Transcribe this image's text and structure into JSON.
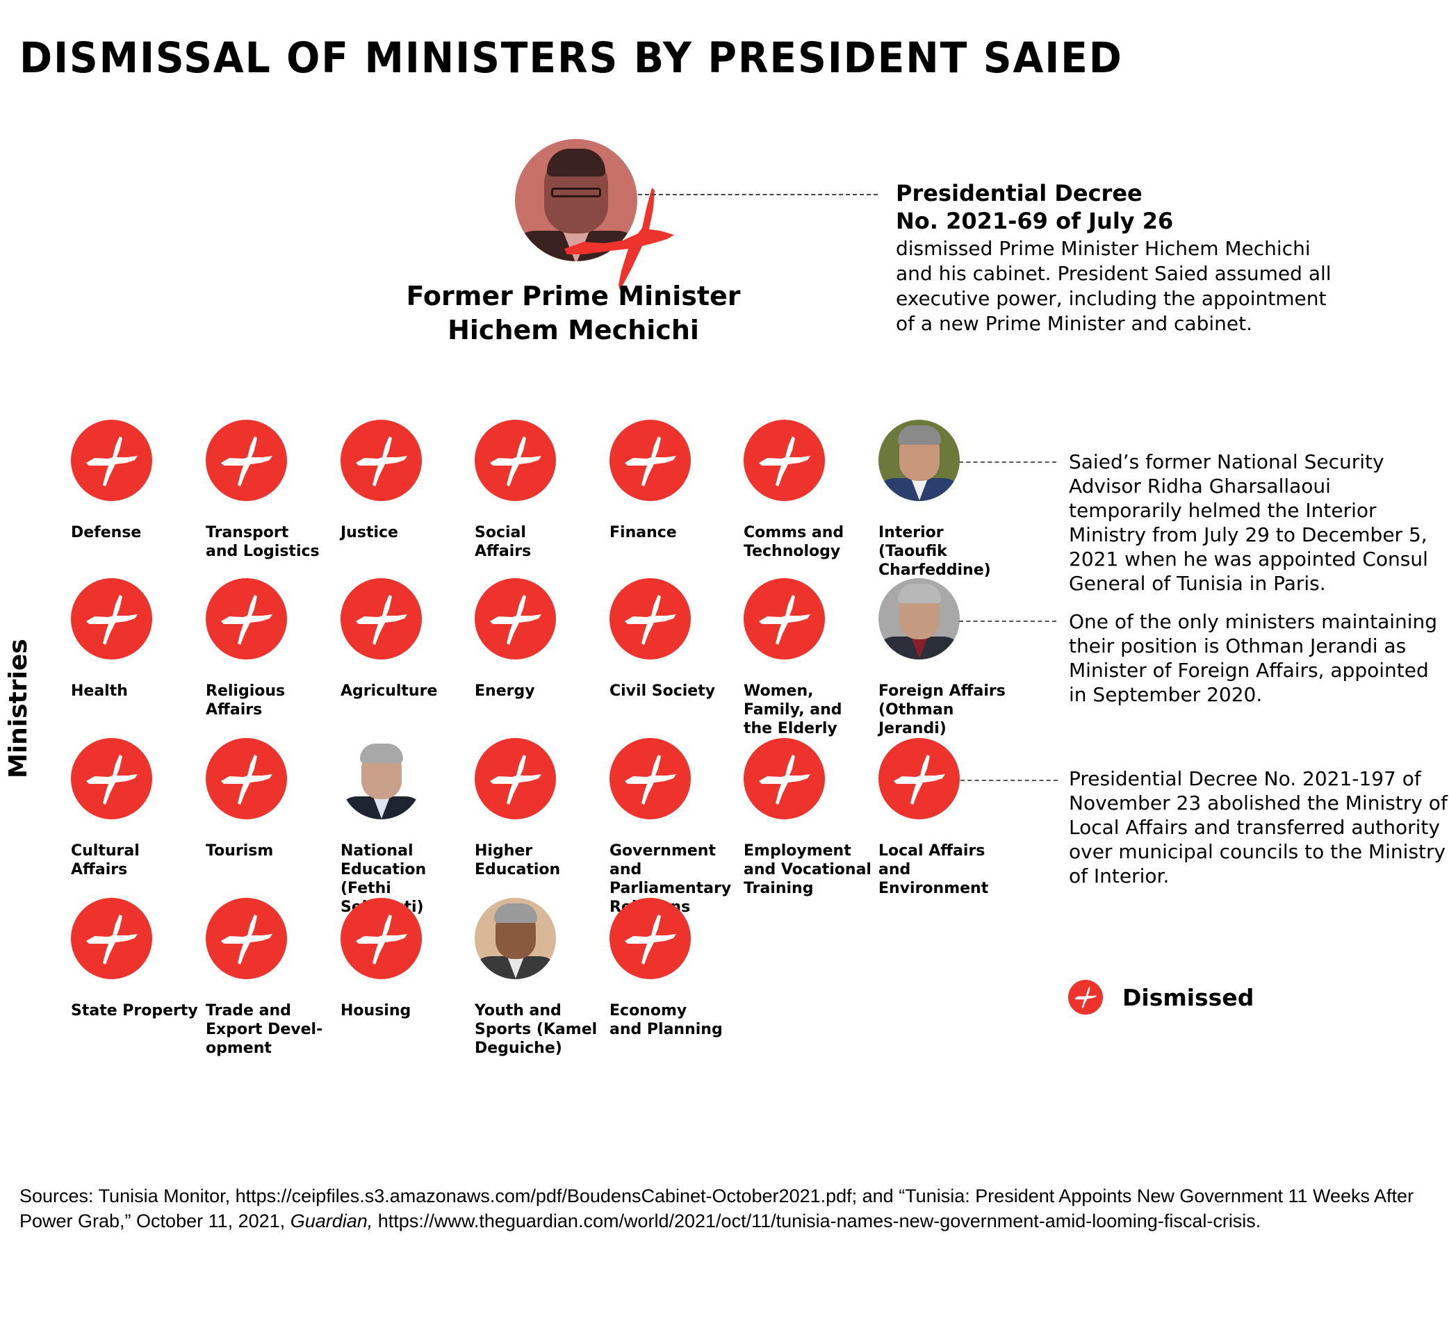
{
  "title": "DISMISSAL OF MINISTERS BY PRESIDENT SAIED",
  "prime_minister": {
    "name_line1": "Former Prime Minister",
    "name_line2": "Hichem Mechichi",
    "status": "dismissed"
  },
  "decree": {
    "heading_line1": "Presidential Decree",
    "heading_line2": "No. 2021-69 of July 26",
    "body": "dismissed Prime Minister Hichem Mechichi and his cabinet. President Saied assumed all executive power, including the appointment of a new Prime Minister and cabinet."
  },
  "axis_label": "Ministries",
  "colors": {
    "dismissed": "#ee332c",
    "text": "#000000"
  },
  "ministries": [
    {
      "label": "Defense",
      "status": "dismissed"
    },
    {
      "label": "Transport\nand Logistics",
      "status": "dismissed"
    },
    {
      "label": "Justice",
      "status": "dismissed"
    },
    {
      "label": "Social\nAffairs",
      "status": "dismissed"
    },
    {
      "label": "Finance",
      "status": "dismissed"
    },
    {
      "label": "Comms and\nTechnology",
      "status": "dismissed"
    },
    {
      "label": "Interior\n(Taoufik\nCharfeddine)",
      "status": "appointed"
    },
    {
      "label": "Health",
      "status": "dismissed"
    },
    {
      "label": "Religious\nAffairs",
      "status": "dismissed"
    },
    {
      "label": "Agriculture",
      "status": "dismissed"
    },
    {
      "label": "Energy",
      "status": "dismissed"
    },
    {
      "label": "Civil Society",
      "status": "dismissed"
    },
    {
      "label": "Women,\nFamily, and\nthe Elderly",
      "status": "dismissed"
    },
    {
      "label": "Foreign Affairs\n(Othman Jerandi)",
      "status": "retained"
    },
    {
      "label": "Cultural\nAffairs",
      "status": "dismissed"
    },
    {
      "label": "Tourism",
      "status": "dismissed"
    },
    {
      "label": "National\nEducation\n(Fethi Sellaouti)",
      "status": "appointed"
    },
    {
      "label": "Higher\nEducation",
      "status": "dismissed"
    },
    {
      "label": "Government and\nParliamentary\nRelations",
      "status": "dismissed"
    },
    {
      "label": "Employment\nand Vocational\nTraining",
      "status": "dismissed"
    },
    {
      "label": "Local Affairs\nand Environment",
      "status": "dismissed"
    },
    {
      "label": "State Property",
      "status": "dismissed"
    },
    {
      "label": "Trade and\nExport Devel-\nopment",
      "status": "dismissed"
    },
    {
      "label": "Housing",
      "status": "dismissed"
    },
    {
      "label": "Youth and\nSports (Kamel\nDeguiche)",
      "status": "appointed"
    },
    {
      "label": "Economy\nand Planning",
      "status": "dismissed"
    }
  ],
  "notes": {
    "interior": "Saied’s former National Security Advisor Ridha Gharsallaoui temporarily helmed the Interior Ministry from July 29 to December 5, 2021 when he was appointed Consul General of Tunisia in Paris.",
    "foreign_affairs": "One of the only ministers maintaining their position is Othman Jerandi as Minister of Foreign Affairs, appointed in September 2020.",
    "local_affairs": "Presidential Decree No. 2021-197 of November 23 abolished the Ministry of Local Affairs and transferred authority over municipal councils to the Ministry of Interior."
  },
  "legend": {
    "icon": "cross-icon",
    "label": "Dismissed"
  },
  "sources": {
    "part1": "Sources: Tunisia Monitor, https://ceipfiles.s3.amazonaws.com/pdf/BoudensCabinet-October2021.pdf; and “Tunisia: President Appoints New Government 11 Weeks After Power Grab,”  October 11, 2021, ",
    "publication": "Guardian,",
    "part2": " https://www.theguardian.com/world/2021/oct/11/tunisia-names-new-government-amid-looming-fiscal-crisis."
  }
}
